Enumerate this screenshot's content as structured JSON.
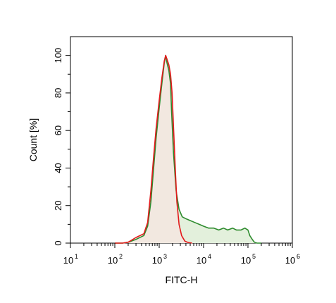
{
  "chart_data": {
    "type": "area",
    "xlabel": "FITC-H",
    "ylabel": "Count [%]",
    "x_scale": "log",
    "xlim": [
      10,
      1000000
    ],
    "ylim": [
      0,
      110
    ],
    "x_tick_base": "10",
    "x_ticks": [
      {
        "value": 10,
        "exp": "1"
      },
      {
        "value": 100,
        "exp": "2"
      },
      {
        "value": 1000,
        "exp": "3"
      },
      {
        "value": 10000,
        "exp": "4"
      },
      {
        "value": 100000,
        "exp": "5"
      },
      {
        "value": 1000000,
        "exp": "6"
      }
    ],
    "y_ticks": [
      0,
      20,
      40,
      60,
      80,
      100
    ],
    "grid": false,
    "legend": "none",
    "series": [
      {
        "color": "#2e8b2e",
        "fill": "#e3f0dc",
        "x": [
          100,
          150,
          200,
          300,
          450,
          550,
          650,
          750,
          850,
          1000,
          1150,
          1300,
          1400,
          1500,
          1650,
          1800,
          1900,
          2100,
          2400,
          2800,
          3300,
          4000,
          5000,
          6300,
          8000,
          10000,
          13000,
          17000,
          22000,
          28000,
          35000,
          45000,
          55000,
          70000,
          85000,
          100000,
          110000,
          125000,
          140000,
          160000,
          200000
        ],
        "y": [
          0,
          0,
          0.5,
          2,
          4,
          9,
          22,
          40,
          56,
          72,
          85,
          96,
          100,
          96,
          92,
          85,
          70,
          48,
          28,
          18,
          14,
          13,
          12,
          11,
          10,
          9,
          8,
          8,
          7,
          8,
          7,
          8,
          7,
          7,
          8,
          7,
          4,
          2,
          0.5,
          0,
          0
        ]
      },
      {
        "color": "#e31a1c",
        "fill": "#f4e6e0",
        "x": [
          100,
          150,
          200,
          300,
          450,
          550,
          650,
          750,
          850,
          1000,
          1150,
          1300,
          1400,
          1500,
          1650,
          1800,
          1950,
          2100,
          2300,
          2500,
          2800,
          3200,
          3800,
          4500,
          5500
        ],
        "y": [
          0,
          0,
          0.5,
          3,
          5,
          11,
          28,
          46,
          61,
          76,
          88,
          97,
          100,
          98,
          95,
          90,
          80,
          62,
          40,
          22,
          10,
          4,
          1,
          0.3,
          0
        ]
      }
    ]
  }
}
